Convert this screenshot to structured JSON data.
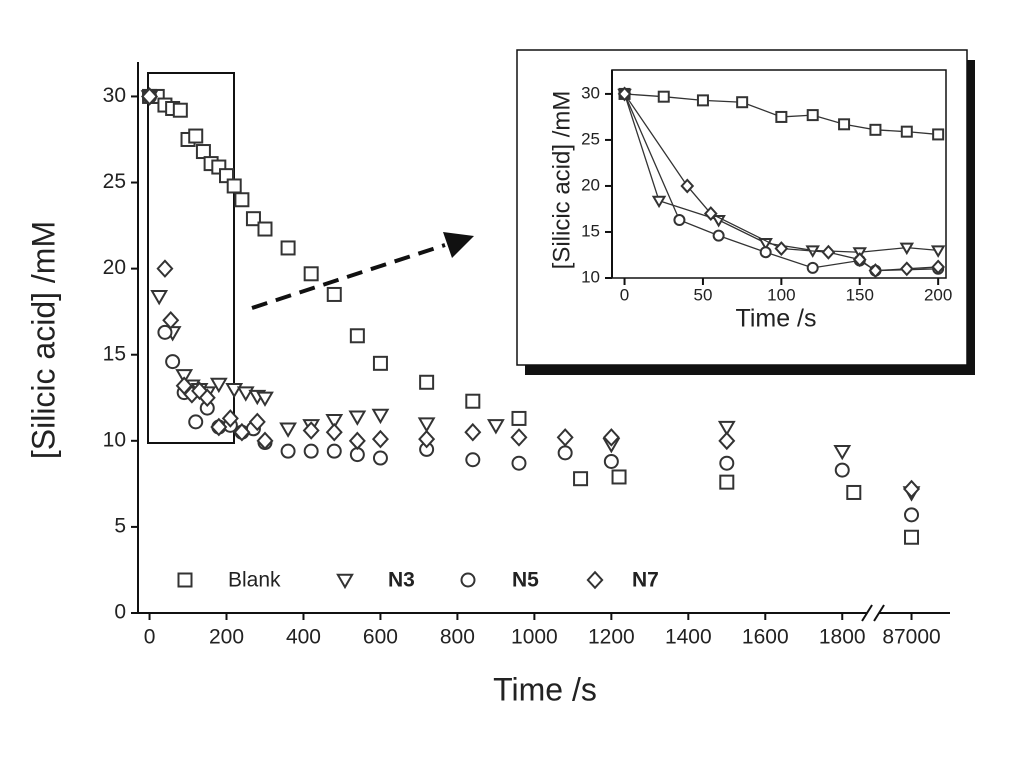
{
  "chart_data": [
    {
      "type": "scatter",
      "xlabel": "Time /s",
      "ylabel": "[Silicic acid] /mM",
      "xlim": [
        -30,
        87100
      ],
      "xbreak": [
        1880,
        86900
      ],
      "ylim": [
        0,
        32
      ],
      "xticks": [
        0,
        200,
        400,
        600,
        800,
        1000,
        1200,
        1400,
        1600,
        1800,
        87000
      ],
      "yticks": [
        0,
        5,
        10,
        15,
        20,
        25,
        30
      ],
      "legend": "lower left",
      "series": [
        {
          "name": "Blank",
          "marker": "square",
          "color": "#333",
          "x": [
            0,
            20,
            40,
            60,
            80,
            100,
            120,
            140,
            160,
            180,
            200,
            220,
            240,
            270,
            300,
            360,
            420,
            480,
            540,
            600,
            720,
            840,
            960,
            1120,
            1220,
            1500,
            1830,
            87000
          ],
          "values": [
            30,
            30,
            29.5,
            29.3,
            29.2,
            27.5,
            27.7,
            26.8,
            26.1,
            25.9,
            25.4,
            24.8,
            24,
            22.9,
            22.3,
            21.2,
            19.7,
            18.5,
            16.1,
            14.5,
            13.4,
            12.3,
            11.3,
            7.8,
            7.9,
            7.6,
            7,
            4.4
          ]
        },
        {
          "name": "N3",
          "marker": "triangle",
          "color": "#333",
          "x": [
            0,
            25,
            60,
            90,
            110,
            130,
            150,
            180,
            220,
            250,
            280,
            300,
            360,
            420,
            480,
            540,
            600,
            720,
            900,
            1200,
            1500,
            1800,
            87000
          ],
          "values": [
            30,
            18.4,
            16.3,
            13.8,
            13.2,
            13,
            12.8,
            13.3,
            13,
            12.8,
            12.6,
            12.5,
            10.7,
            10.9,
            11.2,
            11.4,
            11.5,
            11,
            10.9,
            9.8,
            10.8,
            9.4,
            7
          ]
        },
        {
          "name": "N5",
          "marker": "circle",
          "color": "#333",
          "x": [
            0,
            40,
            60,
            90,
            120,
            150,
            180,
            210,
            240,
            270,
            300,
            360,
            420,
            480,
            540,
            600,
            720,
            840,
            960,
            1080,
            1200,
            1500,
            1800,
            87000
          ],
          "values": [
            30,
            16.3,
            14.6,
            12.8,
            11.1,
            11.9,
            10.8,
            10.9,
            10.5,
            10.7,
            9.9,
            9.4,
            9.4,
            9.4,
            9.2,
            9,
            9.5,
            8.9,
            8.7,
            9.3,
            8.8,
            8.7,
            8.3,
            5.7
          ]
        },
        {
          "name": "N7",
          "marker": "diamond",
          "color": "#333",
          "x": [
            0,
            40,
            55,
            90,
            110,
            130,
            150,
            180,
            210,
            240,
            280,
            300,
            420,
            480,
            540,
            600,
            720,
            840,
            960,
            1080,
            1200,
            1500,
            87000
          ],
          "values": [
            30,
            20,
            17,
            13.2,
            12.7,
            12.9,
            12.5,
            10.8,
            11.3,
            10.5,
            11.1,
            10,
            10.6,
            10.5,
            10,
            10.1,
            10.1,
            10.5,
            10.2,
            10.2,
            10.2,
            10,
            7.2
          ]
        }
      ]
    },
    {
      "type": "line",
      "xlabel": "Time /s",
      "ylabel": "[Silicic acid] /mM",
      "xlim": [
        -8,
        205
      ],
      "ylim": [
        10,
        32.6
      ],
      "xticks": [
        0,
        50,
        100,
        150,
        200
      ],
      "yticks": [
        10,
        15,
        20,
        25,
        30
      ],
      "series": [
        {
          "name": "Blank",
          "marker": "square",
          "color": "#333",
          "x": [
            0,
            25,
            50,
            75,
            100,
            120,
            140,
            160,
            180,
            200
          ],
          "values": [
            30,
            29.7,
            29.3,
            29.1,
            27.5,
            27.7,
            26.7,
            26.1,
            25.9,
            25.6
          ]
        },
        {
          "name": "N3",
          "marker": "triangle",
          "color": "#333",
          "x": [
            0,
            22,
            60,
            90,
            120,
            150,
            180,
            200
          ],
          "values": [
            30,
            18.4,
            16.3,
            13.8,
            13,
            12.8,
            13.3,
            13
          ]
        },
        {
          "name": "N5",
          "marker": "circle",
          "color": "#333",
          "x": [
            0,
            35,
            60,
            90,
            120,
            150,
            160,
            200
          ],
          "values": [
            30,
            16.3,
            14.6,
            12.8,
            11.1,
            11.9,
            10.8,
            11
          ]
        },
        {
          "name": "N7",
          "marker": "diamond",
          "color": "#333",
          "x": [
            0,
            40,
            55,
            100,
            130,
            150,
            160,
            180,
            200
          ],
          "values": [
            30,
            20,
            17,
            13.2,
            12.8,
            12,
            10.8,
            11,
            11.2
          ]
        }
      ]
    }
  ]
}
